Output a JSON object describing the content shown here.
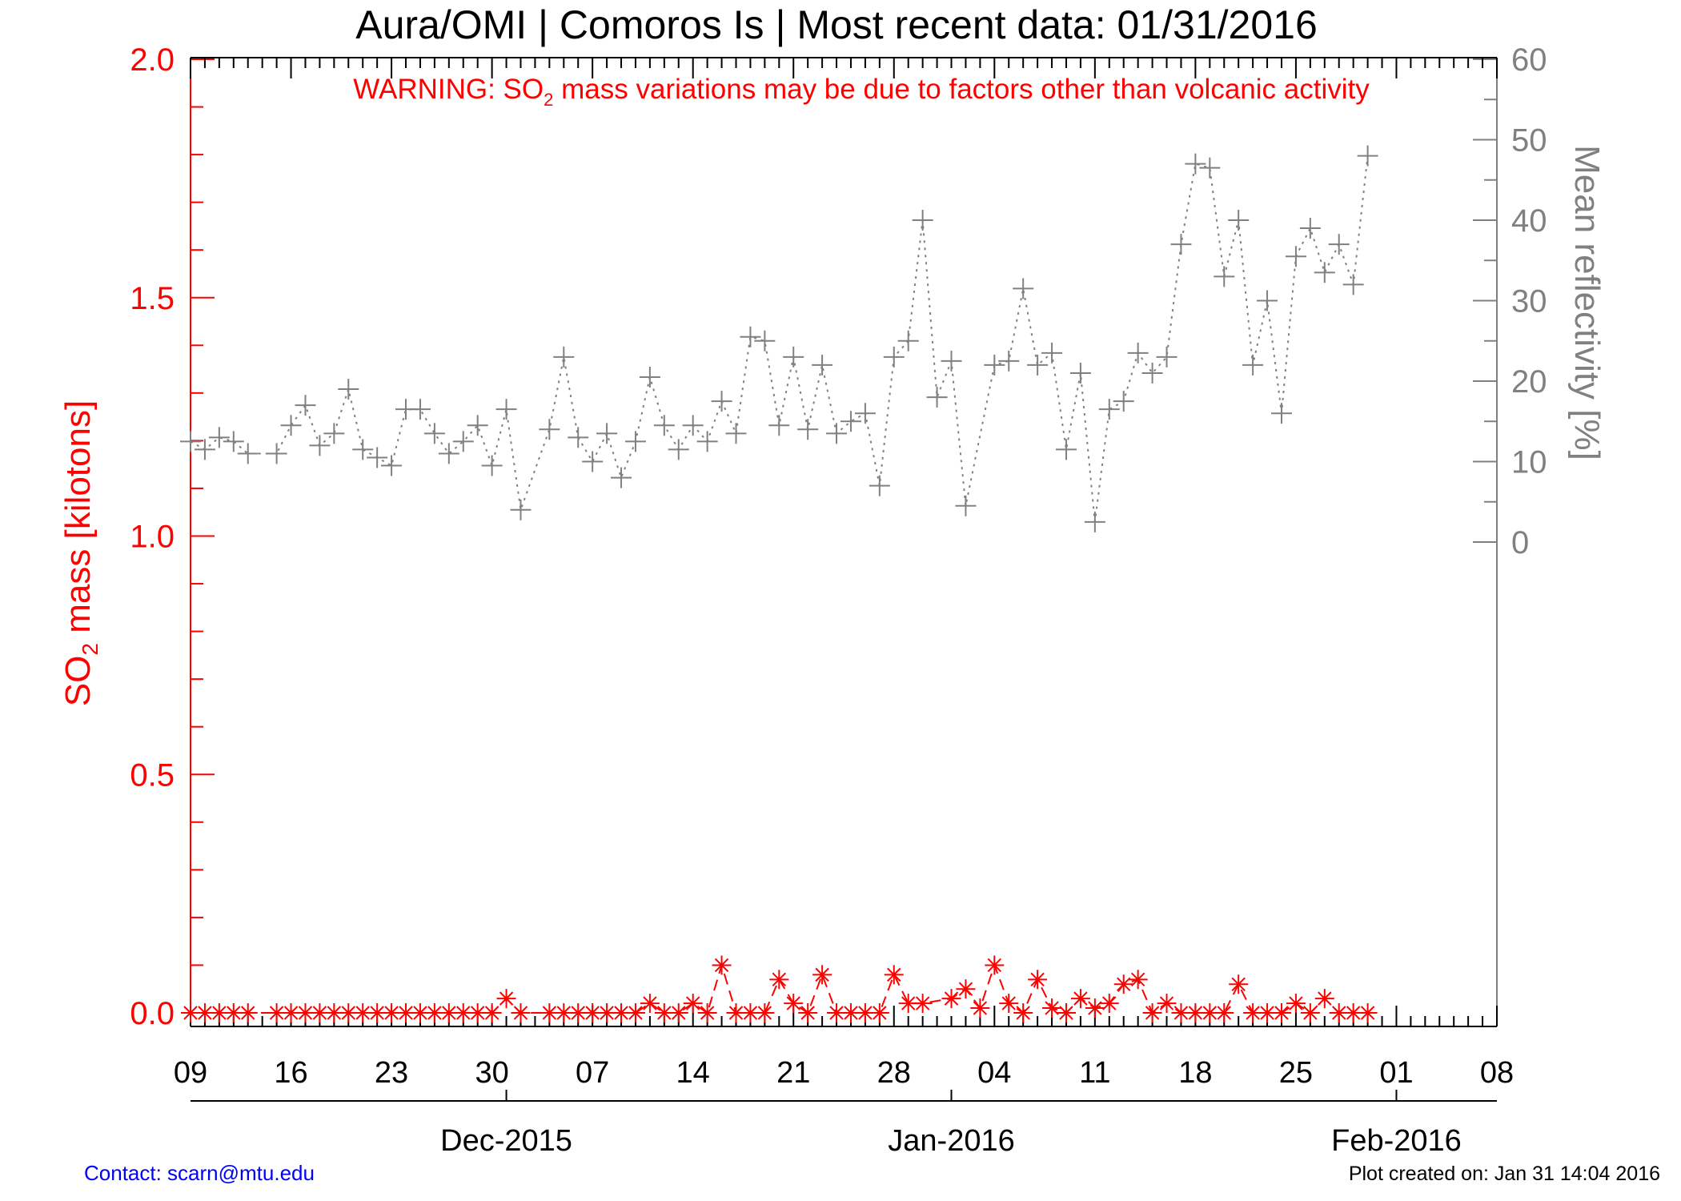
{
  "chart_data": {
    "type": "scatter",
    "title": "Aura/OMI | Comoros Is | Most recent data: 01/31/2016",
    "warning": {
      "prefix": "WARNING: SO",
      "subscript": "2",
      "suffix": " mass variations may be due to factors other than volcanic activity"
    },
    "ylabel_left": {
      "prefix": "SO",
      "subscript": "2",
      "suffix": " mass [kilotons]"
    },
    "ylabel_right": "Mean reflectivity [%]",
    "x_range": [
      "2015-11-09",
      "2016-02-08"
    ],
    "y_left_range": [
      0,
      2
    ],
    "y_right_range": [
      0,
      60
    ],
    "x_ticks": [
      {
        "date": "2015-11-09",
        "label": "09"
      },
      {
        "date": "2015-11-16",
        "label": "16"
      },
      {
        "date": "2015-11-23",
        "label": "23"
      },
      {
        "date": "2015-11-30",
        "label": "30"
      },
      {
        "date": "2015-12-07",
        "label": "07"
      },
      {
        "date": "2015-12-14",
        "label": "14"
      },
      {
        "date": "2015-12-21",
        "label": "21"
      },
      {
        "date": "2015-12-28",
        "label": "28"
      },
      {
        "date": "2016-01-04",
        "label": "04"
      },
      {
        "date": "2016-01-11",
        "label": "11"
      },
      {
        "date": "2016-01-18",
        "label": "18"
      },
      {
        "date": "2016-01-25",
        "label": "25"
      },
      {
        "date": "2016-02-01",
        "label": "01"
      },
      {
        "date": "2016-02-08",
        "label": "08"
      }
    ],
    "month_labels": [
      {
        "date": "2015-12-01",
        "label": "Dec-2015"
      },
      {
        "date": "2016-01-01",
        "label": "Jan-2016"
      },
      {
        "date": "2016-02-01",
        "label": "Feb-2016"
      }
    ],
    "y_left_ticks": [
      "0.0",
      "0.5",
      "1.0",
      "1.5",
      "2.0"
    ],
    "y_right_ticks": [
      "0",
      "10",
      "20",
      "30",
      "40",
      "50",
      "60"
    ],
    "series": [
      {
        "axis": "right",
        "color": "#808080",
        "marker": "plus",
        "line": "dotted",
        "points": [
          [
            "2015-11-09",
            12.5
          ],
          [
            "2015-11-10",
            11.5
          ],
          [
            "2015-11-11",
            13
          ],
          [
            "2015-11-12",
            12.5
          ],
          [
            "2015-11-13",
            11
          ],
          [
            "2015-11-15",
            11
          ],
          [
            "2015-11-16",
            14.5
          ],
          [
            "2015-11-17",
            17
          ],
          [
            "2015-11-18",
            12
          ],
          [
            "2015-11-19",
            13.5
          ],
          [
            "2015-11-20",
            19
          ],
          [
            "2015-11-21",
            11.5
          ],
          [
            "2015-11-22",
            10.5
          ],
          [
            "2015-11-23",
            9.5
          ],
          [
            "2015-11-24",
            16.5
          ],
          [
            "2015-11-25",
            16.5
          ],
          [
            "2015-11-26",
            13.5
          ],
          [
            "2015-11-27",
            11
          ],
          [
            "2015-11-28",
            12.5
          ],
          [
            "2015-11-29",
            14.5
          ],
          [
            "2015-11-30",
            9.5
          ],
          [
            "2015-12-01",
            16.5
          ],
          [
            "2015-12-02",
            4
          ],
          [
            "2015-12-04",
            14
          ],
          [
            "2015-12-05",
            23
          ],
          [
            "2015-12-06",
            13
          ],
          [
            "2015-12-07",
            10
          ],
          [
            "2015-12-08",
            13.5
          ],
          [
            "2015-12-09",
            8
          ],
          [
            "2015-12-10",
            12.5
          ],
          [
            "2015-12-11",
            20.5
          ],
          [
            "2015-12-12",
            14.5
          ],
          [
            "2015-12-13",
            11.5
          ],
          [
            "2015-12-14",
            14.5
          ],
          [
            "2015-12-15",
            12.5
          ],
          [
            "2015-12-16",
            17.5
          ],
          [
            "2015-12-17",
            13.5
          ],
          [
            "2015-12-18",
            25.5
          ],
          [
            "2015-12-19",
            25
          ],
          [
            "2015-12-20",
            14.5
          ],
          [
            "2015-12-21",
            23
          ],
          [
            "2015-12-22",
            14
          ],
          [
            "2015-12-23",
            22
          ],
          [
            "2015-12-24",
            13.5
          ],
          [
            "2015-12-25",
            15
          ],
          [
            "2015-12-26",
            16
          ],
          [
            "2015-12-27",
            7
          ],
          [
            "2015-12-28",
            23
          ],
          [
            "2015-12-29",
            25
          ],
          [
            "2015-12-30",
            40
          ],
          [
            "2015-12-31",
            18
          ],
          [
            "2016-01-01",
            22.5
          ],
          [
            "2016-01-02",
            4.5
          ],
          [
            "2016-01-04",
            22
          ],
          [
            "2016-01-05",
            22.5
          ],
          [
            "2016-01-06",
            31.5
          ],
          [
            "2016-01-07",
            22
          ],
          [
            "2016-01-08",
            23.5
          ],
          [
            "2016-01-09",
            11.5
          ],
          [
            "2016-01-10",
            21
          ],
          [
            "2016-01-11",
            2.5
          ],
          [
            "2016-01-12",
            16.5
          ],
          [
            "2016-01-13",
            17.5
          ],
          [
            "2016-01-14",
            23.5
          ],
          [
            "2016-01-15",
            21
          ],
          [
            "2016-01-16",
            23
          ],
          [
            "2016-01-17",
            37
          ],
          [
            "2016-01-18",
            47
          ],
          [
            "2016-01-19",
            46.5
          ],
          [
            "2016-01-20",
            33
          ],
          [
            "2016-01-21",
            40
          ],
          [
            "2016-01-22",
            22
          ],
          [
            "2016-01-23",
            30
          ],
          [
            "2016-01-24",
            16
          ],
          [
            "2016-01-25",
            35.5
          ],
          [
            "2016-01-26",
            39
          ],
          [
            "2016-01-27",
            33.5
          ],
          [
            "2016-01-28",
            37
          ],
          [
            "2016-01-29",
            32
          ],
          [
            "2016-01-30",
            48
          ]
        ]
      },
      {
        "axis": "left",
        "color": "#ff0000",
        "marker": "asterisk",
        "line": "dashed",
        "points": [
          [
            "2015-11-09",
            0
          ],
          [
            "2015-11-10",
            0
          ],
          [
            "2015-11-11",
            0
          ],
          [
            "2015-11-12",
            0
          ],
          [
            "2015-11-13",
            0
          ],
          [
            "2015-11-15",
            0
          ],
          [
            "2015-11-16",
            0
          ],
          [
            "2015-11-17",
            0
          ],
          [
            "2015-11-18",
            0
          ],
          [
            "2015-11-19",
            0
          ],
          [
            "2015-11-20",
            0
          ],
          [
            "2015-11-21",
            0
          ],
          [
            "2015-11-22",
            0
          ],
          [
            "2015-11-23",
            0
          ],
          [
            "2015-11-24",
            0
          ],
          [
            "2015-11-25",
            0
          ],
          [
            "2015-11-26",
            0
          ],
          [
            "2015-11-27",
            0
          ],
          [
            "2015-11-28",
            0
          ],
          [
            "2015-11-29",
            0
          ],
          [
            "2015-11-30",
            0
          ],
          [
            "2015-12-01",
            0.03
          ],
          [
            "2015-12-02",
            0
          ],
          [
            "2015-12-04",
            0
          ],
          [
            "2015-12-05",
            0
          ],
          [
            "2015-12-06",
            0
          ],
          [
            "2015-12-07",
            0
          ],
          [
            "2015-12-08",
            0
          ],
          [
            "2015-12-09",
            0
          ],
          [
            "2015-12-10",
            0
          ],
          [
            "2015-12-11",
            0.02
          ],
          [
            "2015-12-12",
            0
          ],
          [
            "2015-12-13",
            0
          ],
          [
            "2015-12-14",
            0.02
          ],
          [
            "2015-12-15",
            0
          ],
          [
            "2015-12-16",
            0.1
          ],
          [
            "2015-12-17",
            0
          ],
          [
            "2015-12-18",
            0
          ],
          [
            "2015-12-19",
            0
          ],
          [
            "2015-12-20",
            0.07
          ],
          [
            "2015-12-21",
            0.02
          ],
          [
            "2015-12-22",
            0
          ],
          [
            "2015-12-23",
            0.08
          ],
          [
            "2015-12-24",
            0
          ],
          [
            "2015-12-25",
            0
          ],
          [
            "2015-12-26",
            0
          ],
          [
            "2015-12-27",
            0
          ],
          [
            "2015-12-28",
            0.08
          ],
          [
            "2015-12-29",
            0.02
          ],
          [
            "2015-12-30",
            0.02
          ],
          [
            "2016-01-01",
            0.03
          ],
          [
            "2016-01-02",
            0.05
          ],
          [
            "2016-01-03",
            0.01
          ],
          [
            "2016-01-04",
            0.1
          ],
          [
            "2016-01-05",
            0.02
          ],
          [
            "2016-01-06",
            0
          ],
          [
            "2016-01-07",
            0.07
          ],
          [
            "2016-01-08",
            0.01
          ],
          [
            "2016-01-09",
            0
          ],
          [
            "2016-01-10",
            0.03
          ],
          [
            "2016-01-11",
            0.01
          ],
          [
            "2016-01-12",
            0.02
          ],
          [
            "2016-01-13",
            0.06
          ],
          [
            "2016-01-14",
            0.07
          ],
          [
            "2016-01-15",
            0
          ],
          [
            "2016-01-16",
            0.02
          ],
          [
            "2016-01-17",
            0
          ],
          [
            "2016-01-18",
            0
          ],
          [
            "2016-01-19",
            0
          ],
          [
            "2016-01-20",
            0
          ],
          [
            "2016-01-21",
            0.06
          ],
          [
            "2016-01-22",
            0
          ],
          [
            "2016-01-23",
            0
          ],
          [
            "2016-01-24",
            0
          ],
          [
            "2016-01-25",
            0.02
          ],
          [
            "2016-01-26",
            0
          ],
          [
            "2016-01-27",
            0.03
          ],
          [
            "2016-01-28",
            0
          ],
          [
            "2016-01-29",
            0
          ],
          [
            "2016-01-30",
            0
          ]
        ]
      }
    ]
  },
  "footer": {
    "contact": "Contact: scarn@mtu.edu",
    "created": "Plot created on: Jan 31 14:04 2016"
  }
}
